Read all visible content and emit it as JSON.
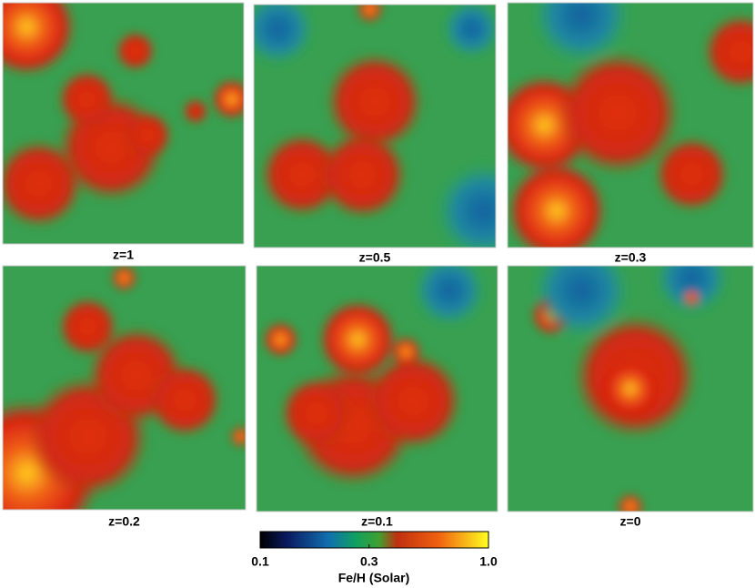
{
  "panels": [
    {
      "label": "z=1"
    },
    {
      "label": "z=0.5"
    },
    {
      "label": "z=0.3"
    },
    {
      "label": "z=0.2"
    },
    {
      "label": "z=0.1"
    },
    {
      "label": "z=0"
    }
  ],
  "colorbar": {
    "label": "Fe/H (Solar)",
    "lim": [
      0.1,
      {
        "value": 1.0,
        "label": "1.0"
      }
    ],
    "log": true,
    "ticks": [
      0.1,
      0.3,
      {
        "value": 1.0,
        "label": "1.0"
      }
    ]
  }
}
